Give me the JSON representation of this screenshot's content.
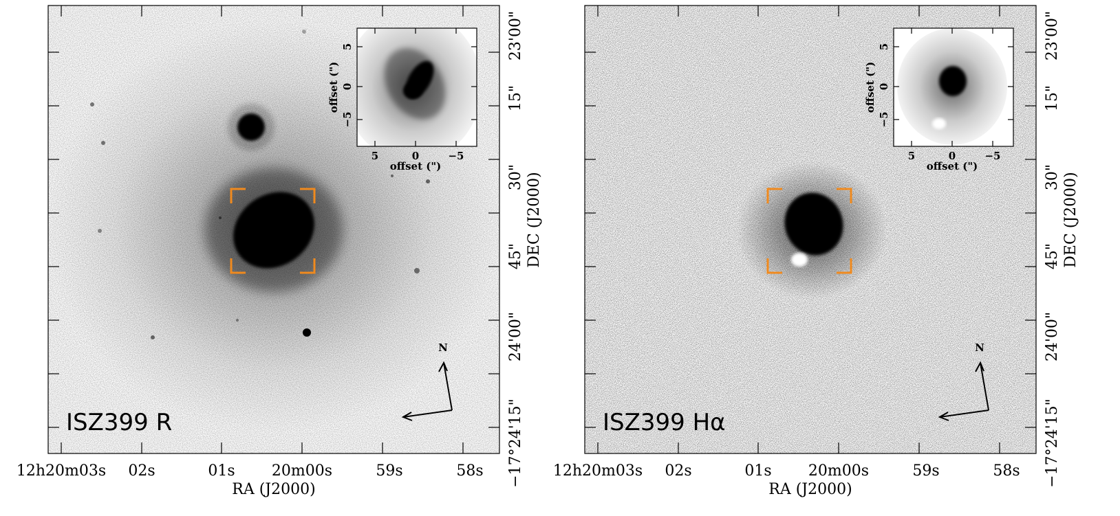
{
  "panels": [
    {
      "id": "r",
      "label": "ISZ399  R",
      "north_label": "N",
      "ra_ticks": [
        "12h20m03s",
        "02s",
        "01s",
        "20m00s",
        "59s",
        "58s"
      ],
      "dec_ticks": [
        "23'00\"",
        "15\"",
        "30\"",
        "45\"",
        "24'00\"",
        "−17°24'15\""
      ],
      "inset": {
        "x_ticks": [
          "5",
          "0",
          "−5"
        ],
        "y_ticks": [
          "5",
          "0",
          "−5"
        ],
        "x_label": "offset (\")",
        "y_label": "offset (\")"
      }
    },
    {
      "id": "ha",
      "label": "ISZ399  Hα",
      "north_label": "N",
      "ra_ticks": [
        "12h20m03s",
        "02s",
        "01s",
        "20m00s",
        "59s",
        "58s"
      ],
      "dec_ticks": [
        "23'00\"",
        "15\"",
        "30\"",
        "45\"",
        "24'00\"",
        "−17°24'15\""
      ],
      "inset": {
        "x_ticks": [
          "5",
          "0",
          "−5"
        ],
        "y_ticks": [
          "5",
          "0",
          "−5"
        ],
        "x_label": "offset (\")",
        "y_label": "offset (\")"
      }
    }
  ],
  "x_axis_title": "RA (J2000)",
  "y_axis_title": "DEC (J2000)",
  "colors": {
    "bracket": "#f08a1e",
    "frame": "#000000"
  }
}
